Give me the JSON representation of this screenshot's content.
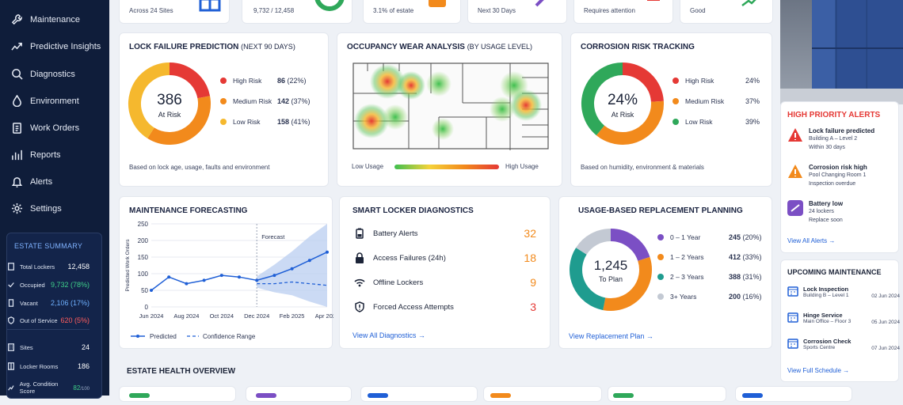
{
  "top_strip": {
    "sites": "Across 24 Sites",
    "occ": "9,732 / 12,458",
    "estate": "3.1% of estate",
    "next": "Next 30 Days",
    "attn": "Requires attention",
    "good": "Good"
  },
  "nav": [
    {
      "label": "Maintenance",
      "icon": "wrench-icon"
    },
    {
      "label": "Predictive Insights",
      "icon": "trend-icon"
    },
    {
      "label": "Diagnostics",
      "icon": "magnifier-icon"
    },
    {
      "label": "Environment",
      "icon": "droplet-icon"
    },
    {
      "label": "Work Orders",
      "icon": "clipboard-icon"
    },
    {
      "label": "Reports",
      "icon": "bar-chart-icon"
    },
    {
      "label": "Alerts",
      "icon": "bell-icon"
    },
    {
      "label": "Settings",
      "icon": "gear-icon"
    }
  ],
  "estate": {
    "title": "ESTATE SUMMARY",
    "rows": [
      {
        "label": "Total Lockers",
        "value": "12,458",
        "c": ""
      },
      {
        "label": "Occupied",
        "value": "9,732 (78%)",
        "c": "g"
      },
      {
        "label": "Vacant",
        "value": "2,106 (17%)",
        "c": "b"
      },
      {
        "label": "Out of Service",
        "value": "620 (5%)",
        "c": "r"
      }
    ],
    "rows2": [
      {
        "label": "Sites",
        "value": "24"
      },
      {
        "label": "Locker Rooms",
        "value": "186"
      },
      {
        "label": "Avg. Condition Score",
        "value": "82",
        "unit": "/100"
      }
    ]
  },
  "lock": {
    "title": "LOCK FAILURE PREDICTION",
    "title_sub": "(NEXT 90 DAYS)",
    "center": "386",
    "center_sub": "At Risk",
    "items": [
      {
        "label": "High Risk",
        "value": "86",
        "pct": "(22%)",
        "color": "#e53935",
        "frac": 0.22
      },
      {
        "label": "Medium Risk",
        "value": "142",
        "pct": "(37%)",
        "color": "#f28a1c",
        "frac": 0.37
      },
      {
        "label": "Low Risk",
        "value": "158",
        "pct": "(41%)",
        "color": "#f5b82e",
        "frac": 0.41
      }
    ],
    "note": "Based on lock age, usage, faults and environment"
  },
  "occupancy": {
    "title": "OCCUPANCY WEAR ANALYSIS",
    "title_sub": "(BY USAGE LEVEL)",
    "low": "Low Usage",
    "high": "High Usage"
  },
  "corrosion": {
    "title": "CORROSION RISK TRACKING",
    "center": "24%",
    "center_sub": "At Risk",
    "items": [
      {
        "label": "High Risk",
        "value": "24%",
        "color": "#e53935",
        "frac": 0.24
      },
      {
        "label": "Medium Risk",
        "value": "37%",
        "color": "#f28a1c",
        "frac": 0.37
      },
      {
        "label": "Low Risk",
        "value": "39%",
        "color": "#2fa85a",
        "frac": 0.39
      }
    ],
    "note": "Based on humidity, environment & materials"
  },
  "forecast": {
    "title": "MAINTENANCE FORECASTING",
    "ylabel": "Predicted Work Orders",
    "yticks": [
      "250",
      "200",
      "150",
      "100",
      "50",
      "0"
    ],
    "xticks": [
      "Jun 2024",
      "Aug 2024",
      "Oct 2024",
      "Dec 2024",
      "Feb 2025",
      "Apr 2025"
    ],
    "forecast_label": "Forecast",
    "legend_pred": "Predicted",
    "legend_conf": "Confidence Range"
  },
  "chart_data": {
    "type": "line",
    "title": "MAINTENANCE FORECASTING",
    "xlabel": "",
    "ylabel": "Predicted Work Orders",
    "ylim": [
      0,
      250
    ],
    "x": [
      "Jun 2024",
      "Jul 2024",
      "Aug 2024",
      "Sep 2024",
      "Oct 2024",
      "Nov 2024",
      "Dec 2024",
      "Jan 2025",
      "Feb 2025",
      "Mar 2025",
      "Apr 2025"
    ],
    "series": [
      {
        "name": "Predicted",
        "values": [
          50,
          90,
          70,
          80,
          95,
          90,
          80,
          95,
          115,
          140,
          165
        ]
      },
      {
        "name": "Confidence Range",
        "values": [
          50,
          80,
          75,
          85,
          90,
          80,
          70,
          70,
          75,
          70,
          65
        ]
      }
    ]
  },
  "diag": {
    "title": "SMART LOCKER DIAGNOSTICS",
    "rows": [
      {
        "label": "Battery Alerts",
        "value": "32",
        "icon": "battery-icon"
      },
      {
        "label": "Access Failures (24h)",
        "value": "18",
        "icon": "lock-icon"
      },
      {
        "label": "Offline Lockers",
        "value": "9",
        "icon": "wifi-icon"
      },
      {
        "label": "Forced Access Attempts",
        "value": "3",
        "icon": "shield-icon"
      }
    ],
    "link": "View All Diagnostics"
  },
  "replace": {
    "title": "USAGE-BASED REPLACEMENT PLANNING",
    "center": "1,245",
    "center_sub": "To Plan",
    "items": [
      {
        "label": "0 – 1 Year",
        "value": "245",
        "pct": "(20%)",
        "color": "#7b4fc4",
        "frac": 0.2
      },
      {
        "label": "1 – 2 Years",
        "value": "412",
        "pct": "(33%)",
        "color": "#f28a1c",
        "frac": 0.33
      },
      {
        "label": "2 – 3 Years",
        "value": "388",
        "pct": "(31%)",
        "color": "#1f9c8f",
        "frac": 0.31
      },
      {
        "label": "3+ Years",
        "value": "200",
        "pct": "(16%)",
        "color": "#c3c9d3",
        "frac": 0.16
      }
    ],
    "link": "View Replacement Plan"
  },
  "alerts": {
    "title": "HIGH PRIORITY ALERTS",
    "items": [
      {
        "t": "Lock failure predicted",
        "s1": "Building A – Level 2",
        "s2": "Within 30 days",
        "c": "#e53935"
      },
      {
        "t": "Corrosion risk high",
        "s1": "Pool Changing Room 1",
        "s2": "Inspection overdue",
        "c": "#f28a1c"
      },
      {
        "t": "Battery low",
        "s1": "24 lockers",
        "s2": "Replace soon",
        "c": "#7b4fc4"
      }
    ],
    "link": "View All Alerts"
  },
  "upcoming": {
    "title": "UPCOMING MAINTENANCE",
    "items": [
      {
        "t": "Lock Inspection",
        "s": "Building B – Level 1",
        "d": "02 Jun 2024"
      },
      {
        "t": "Hinge Service",
        "s": "Main Office – Floor 3",
        "d": "05 Jun 2024"
      },
      {
        "t": "Corrosion Check",
        "s": "Sports Centre",
        "d": "07 Jun 2024"
      }
    ],
    "link": "View Full Schedule"
  },
  "health": {
    "title": "ESTATE HEALTH OVERVIEW"
  }
}
